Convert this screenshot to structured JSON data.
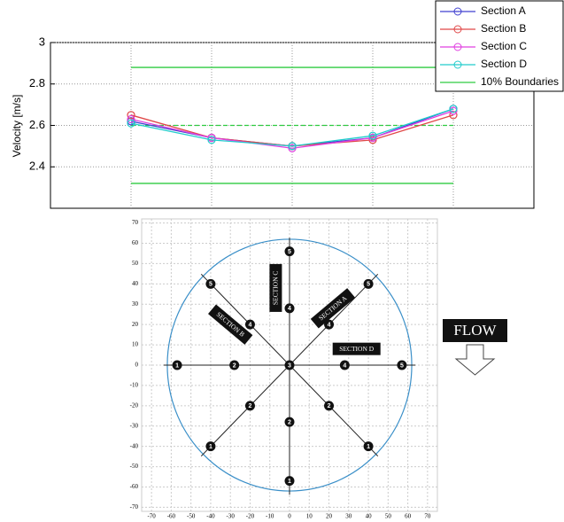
{
  "chart_data": [
    {
      "type": "line",
      "ylabel": "Velocity [m/s]",
      "categories": [
        null,
        null,
        null,
        null,
        null
      ],
      "ylim": [
        2.2,
        3.0
      ],
      "yticks": [
        2.4,
        2.6,
        2.8,
        3
      ],
      "grid": true,
      "legend": "top-right",
      "series": [
        {
          "name": "Section A",
          "color": "#4040d0",
          "values": [
            2.62,
            2.54,
            2.5,
            2.54,
            2.68
          ]
        },
        {
          "name": "Section B",
          "color": "#e04848",
          "values": [
            2.65,
            2.54,
            2.5,
            2.53,
            2.65
          ]
        },
        {
          "name": "Section C",
          "color": "#e040e0",
          "values": [
            2.63,
            2.54,
            2.49,
            2.54,
            2.67
          ]
        },
        {
          "name": "Section D",
          "color": "#20cccc",
          "values": [
            2.61,
            2.53,
            2.5,
            2.55,
            2.68
          ]
        }
      ],
      "boundaries": {
        "name": "10% Boundaries",
        "color": "#2ecc40",
        "upper": 2.88,
        "lower": 2.32,
        "mean": 2.6
      }
    },
    {
      "type": "scatter",
      "xlim": [
        -75,
        75
      ],
      "ylim": [
        -72,
        72
      ],
      "xticks": [
        -70,
        -60,
        -50,
        -40,
        -30,
        -20,
        -10,
        0,
        10,
        20,
        30,
        40,
        50,
        60,
        70
      ],
      "yticks": [
        -70,
        -60,
        -50,
        -40,
        -30,
        -20,
        -10,
        0,
        10,
        20,
        30,
        40,
        50,
        60,
        70
      ],
      "grid": true,
      "circle_radius": 62,
      "center": {
        "x": 0,
        "y": 0,
        "label": 3
      },
      "sections": [
        {
          "name": "SECTION A",
          "x": [
            -40,
            -20,
            20,
            40
          ],
          "y": [
            -40,
            -20,
            20,
            40
          ],
          "labels": [
            1,
            2,
            4,
            5
          ]
        },
        {
          "name": "SECTION B",
          "x": [
            40,
            20,
            -20,
            -40
          ],
          "y": [
            -40,
            -20,
            20,
            40
          ],
          "labels": [
            1,
            2,
            4,
            5
          ]
        },
        {
          "name": "SECTION C",
          "x": [
            0,
            0,
            0,
            0
          ],
          "y": [
            -57,
            -28,
            28,
            56
          ],
          "labels": [
            1,
            2,
            4,
            5
          ]
        },
        {
          "name": "SECTION D",
          "x": [
            -57,
            -28,
            28,
            57
          ],
          "y": [
            0,
            0,
            0,
            0
          ],
          "labels": [
            1,
            2,
            4,
            5
          ]
        }
      ],
      "annotation": "FLOW"
    }
  ]
}
